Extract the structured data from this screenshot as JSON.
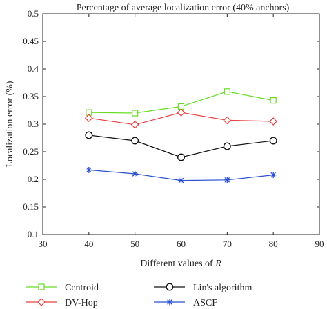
{
  "chart_data": {
    "type": "line",
    "title": "Percentage of average localization error (40% anchors)",
    "xlabel_prefix": "Different values of ",
    "xlabel_var": "R",
    "ylabel": "Localization error (%)",
    "xlim": [
      30,
      90
    ],
    "ylim": [
      0.1,
      0.5
    ],
    "xticks": [
      30,
      40,
      50,
      60,
      70,
      80,
      90
    ],
    "yticks": [
      0.1,
      0.15,
      0.2,
      0.25,
      0.3,
      0.35,
      0.4,
      0.45,
      0.5
    ],
    "ytick_labels": [
      "0.1",
      "0.15",
      "0.2",
      "0.25",
      "0.3",
      "0.35",
      "0.4",
      "0.45",
      "0.5"
    ],
    "grid": false,
    "legend_position": "bottom-outside",
    "x": [
      40,
      50,
      60,
      70,
      80
    ],
    "series": [
      {
        "name": "Centroid",
        "color": "#66dd22",
        "marker": "square",
        "values": [
          0.321,
          0.32,
          0.332,
          0.359,
          0.343
        ]
      },
      {
        "name": "DV-Hop",
        "color": "#e84040",
        "marker": "diamond",
        "values": [
          0.311,
          0.299,
          0.321,
          0.307,
          0.305
        ]
      },
      {
        "name": "Lin's algorithm",
        "color": "#111111",
        "marker": "circle",
        "values": [
          0.28,
          0.27,
          0.24,
          0.26,
          0.27
        ]
      },
      {
        "name": "ASCF",
        "color": "#2a4fd0",
        "marker": "asterisk",
        "values": [
          0.217,
          0.21,
          0.198,
          0.199,
          0.208
        ]
      }
    ]
  }
}
